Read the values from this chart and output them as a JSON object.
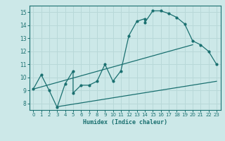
{
  "xlabel": "Humidex (Indice chaleur)",
  "bg_color": "#cce8e8",
  "grid_color": "#b8d8d8",
  "line_color": "#1a7070",
  "xlim": [
    -0.5,
    23.5
  ],
  "ylim": [
    7.5,
    15.5
  ],
  "xticks": [
    0,
    1,
    2,
    3,
    4,
    5,
    6,
    7,
    8,
    9,
    10,
    11,
    12,
    13,
    14,
    15,
    16,
    17,
    18,
    19,
    20,
    21,
    22,
    23
  ],
  "yticks": [
    8,
    9,
    10,
    11,
    12,
    13,
    14,
    15
  ],
  "line1_x": [
    0,
    1,
    2,
    3,
    4,
    5,
    5,
    6,
    7,
    8,
    9,
    10,
    11,
    12,
    13,
    14,
    14,
    15,
    16,
    17,
    18,
    19,
    20,
    21,
    22,
    23
  ],
  "line1_y": [
    9.1,
    10.2,
    9.0,
    7.7,
    9.5,
    10.5,
    8.8,
    9.4,
    9.4,
    9.7,
    11.0,
    9.7,
    10.5,
    13.2,
    14.3,
    14.5,
    14.2,
    15.1,
    15.1,
    14.9,
    14.6,
    14.1,
    12.8,
    12.5,
    12.0,
    11.0
  ],
  "line2_x": [
    0,
    20
  ],
  "line2_y": [
    9.1,
    12.5
  ],
  "line3_x": [
    3,
    23
  ],
  "line3_y": [
    7.75,
    9.7
  ]
}
